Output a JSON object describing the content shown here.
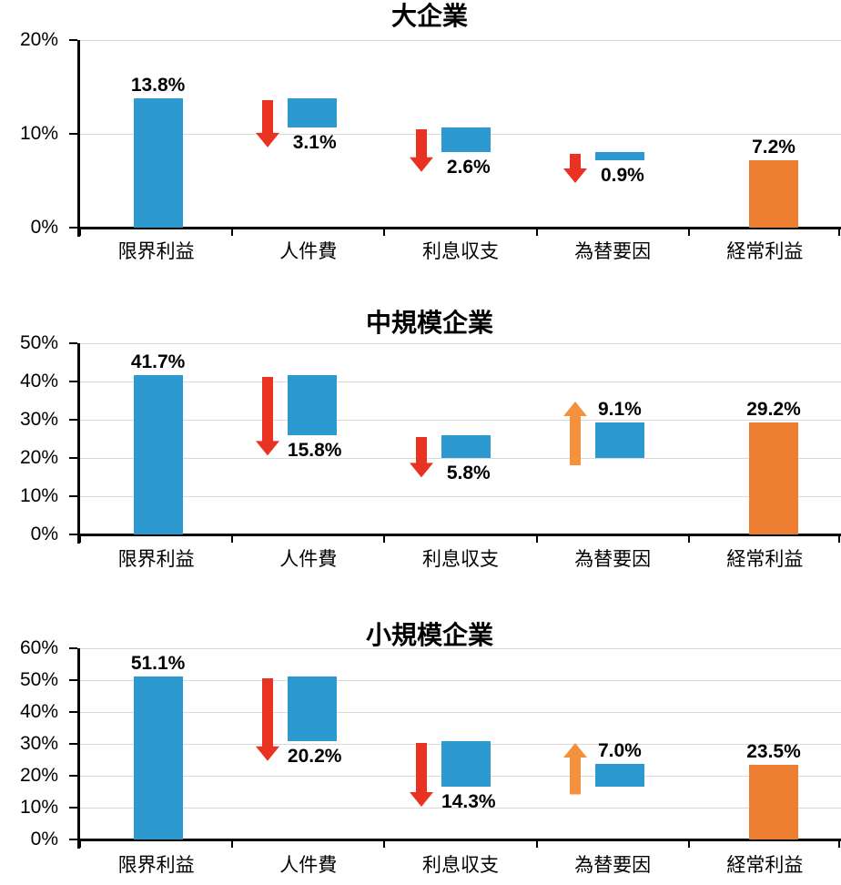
{
  "colors": {
    "bar_blue": "#2C99D0",
    "bar_orange": "#ED7D31",
    "arrow_decrease_red": "#EA3223",
    "arrow_increase_orange": "#F3913D",
    "gridline": "#D9D9D9",
    "axis": "#000000",
    "text": "#000000"
  },
  "chart_data": [
    {
      "type": "waterfall-bar",
      "title": "大企業",
      "ylim": [
        0,
        20
      ],
      "ytick_interval": 10,
      "ytick_labels": [
        "0%",
        "10%",
        "20%"
      ],
      "grid": "horizontal",
      "legend": "none",
      "categories": [
        "限界利益",
        "人件費",
        "利息収支",
        "為替要因",
        "経常利益"
      ],
      "steps": [
        {
          "category": "限界利益",
          "role": "start",
          "value": 13.8,
          "label": "13.8%"
        },
        {
          "category": "人件費",
          "role": "decrease",
          "value": 3.1,
          "label": "3.1%"
        },
        {
          "category": "利息収支",
          "role": "decrease",
          "value": 2.6,
          "label": "2.6%"
        },
        {
          "category": "為替要因",
          "role": "decrease",
          "value": 0.9,
          "label": "0.9%"
        },
        {
          "category": "経常利益",
          "role": "total",
          "value": 7.2,
          "label": "7.2%"
        }
      ]
    },
    {
      "type": "waterfall-bar",
      "title": "中規模企業",
      "ylim": [
        0,
        50
      ],
      "ytick_interval": 10,
      "ytick_labels": [
        "0%",
        "10%",
        "20%",
        "30%",
        "40%",
        "50%"
      ],
      "grid": "horizontal",
      "legend": "none",
      "categories": [
        "限界利益",
        "人件費",
        "利息収支",
        "為替要因",
        "経常利益"
      ],
      "steps": [
        {
          "category": "限界利益",
          "role": "start",
          "value": 41.7,
          "label": "41.7%"
        },
        {
          "category": "人件費",
          "role": "decrease",
          "value": 15.8,
          "label": "15.8%"
        },
        {
          "category": "利息収支",
          "role": "decrease",
          "value": 5.8,
          "label": "5.8%"
        },
        {
          "category": "為替要因",
          "role": "increase",
          "value": 9.1,
          "label": "9.1%"
        },
        {
          "category": "経常利益",
          "role": "total",
          "value": 29.2,
          "label": "29.2%"
        }
      ]
    },
    {
      "type": "waterfall-bar",
      "title": "小規模企業",
      "ylim": [
        0,
        60
      ],
      "ytick_interval": 10,
      "ytick_labels": [
        "0%",
        "10%",
        "20%",
        "30%",
        "40%",
        "50%",
        "60%"
      ],
      "grid": "horizontal",
      "legend": "none",
      "categories": [
        "限界利益",
        "人件費",
        "利息収支",
        "為替要因",
        "経常利益"
      ],
      "steps": [
        {
          "category": "限界利益",
          "role": "start",
          "value": 51.1,
          "label": "51.1%"
        },
        {
          "category": "人件費",
          "role": "decrease",
          "value": 20.2,
          "label": "20.2%"
        },
        {
          "category": "利息収支",
          "role": "decrease",
          "value": 14.3,
          "label": "14.3%"
        },
        {
          "category": "為替要因",
          "role": "increase",
          "value": 7.0,
          "label": "7.0%"
        },
        {
          "category": "経常利益",
          "role": "total",
          "value": 23.5,
          "label": "23.5%"
        }
      ]
    }
  ]
}
